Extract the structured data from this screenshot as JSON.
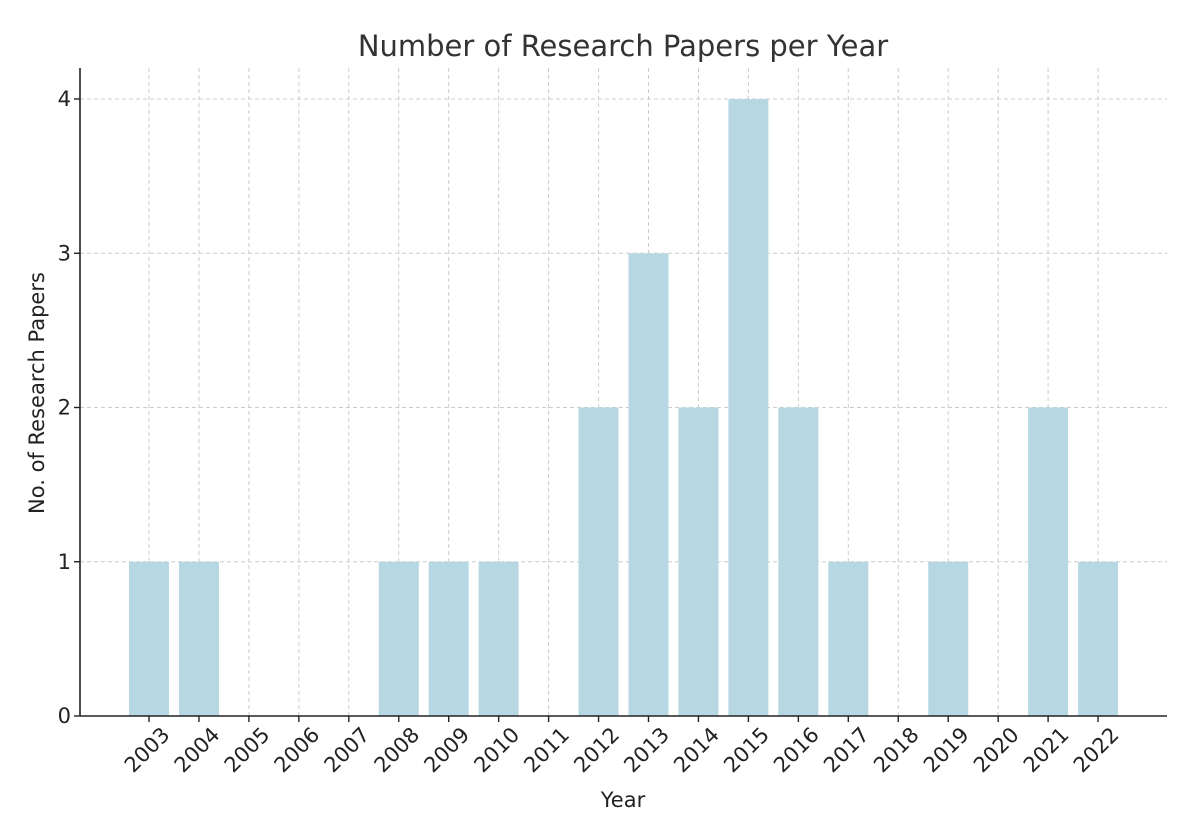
{
  "chart_data": {
    "type": "bar",
    "title": "Number of Research Papers per Year",
    "xlabel": "Year",
    "ylabel": "No. of Research Papers",
    "categories": [
      "2003",
      "2004",
      "2005",
      "2006",
      "2007",
      "2008",
      "2009",
      "2010",
      "2011",
      "2012",
      "2013",
      "2014",
      "2015",
      "2016",
      "2017",
      "2018",
      "2019",
      "2020",
      "2021",
      "2022"
    ],
    "values": [
      1,
      1,
      0,
      0,
      0,
      1,
      1,
      1,
      0,
      2,
      3,
      2,
      4,
      2,
      1,
      0,
      1,
      0,
      2,
      1
    ],
    "ylim": [
      0,
      4.2
    ],
    "yticks": [
      0,
      1,
      2,
      3,
      4
    ],
    "grid": true,
    "bar_color": "#b7d8e3",
    "tick_label_rotation": "45deg"
  }
}
